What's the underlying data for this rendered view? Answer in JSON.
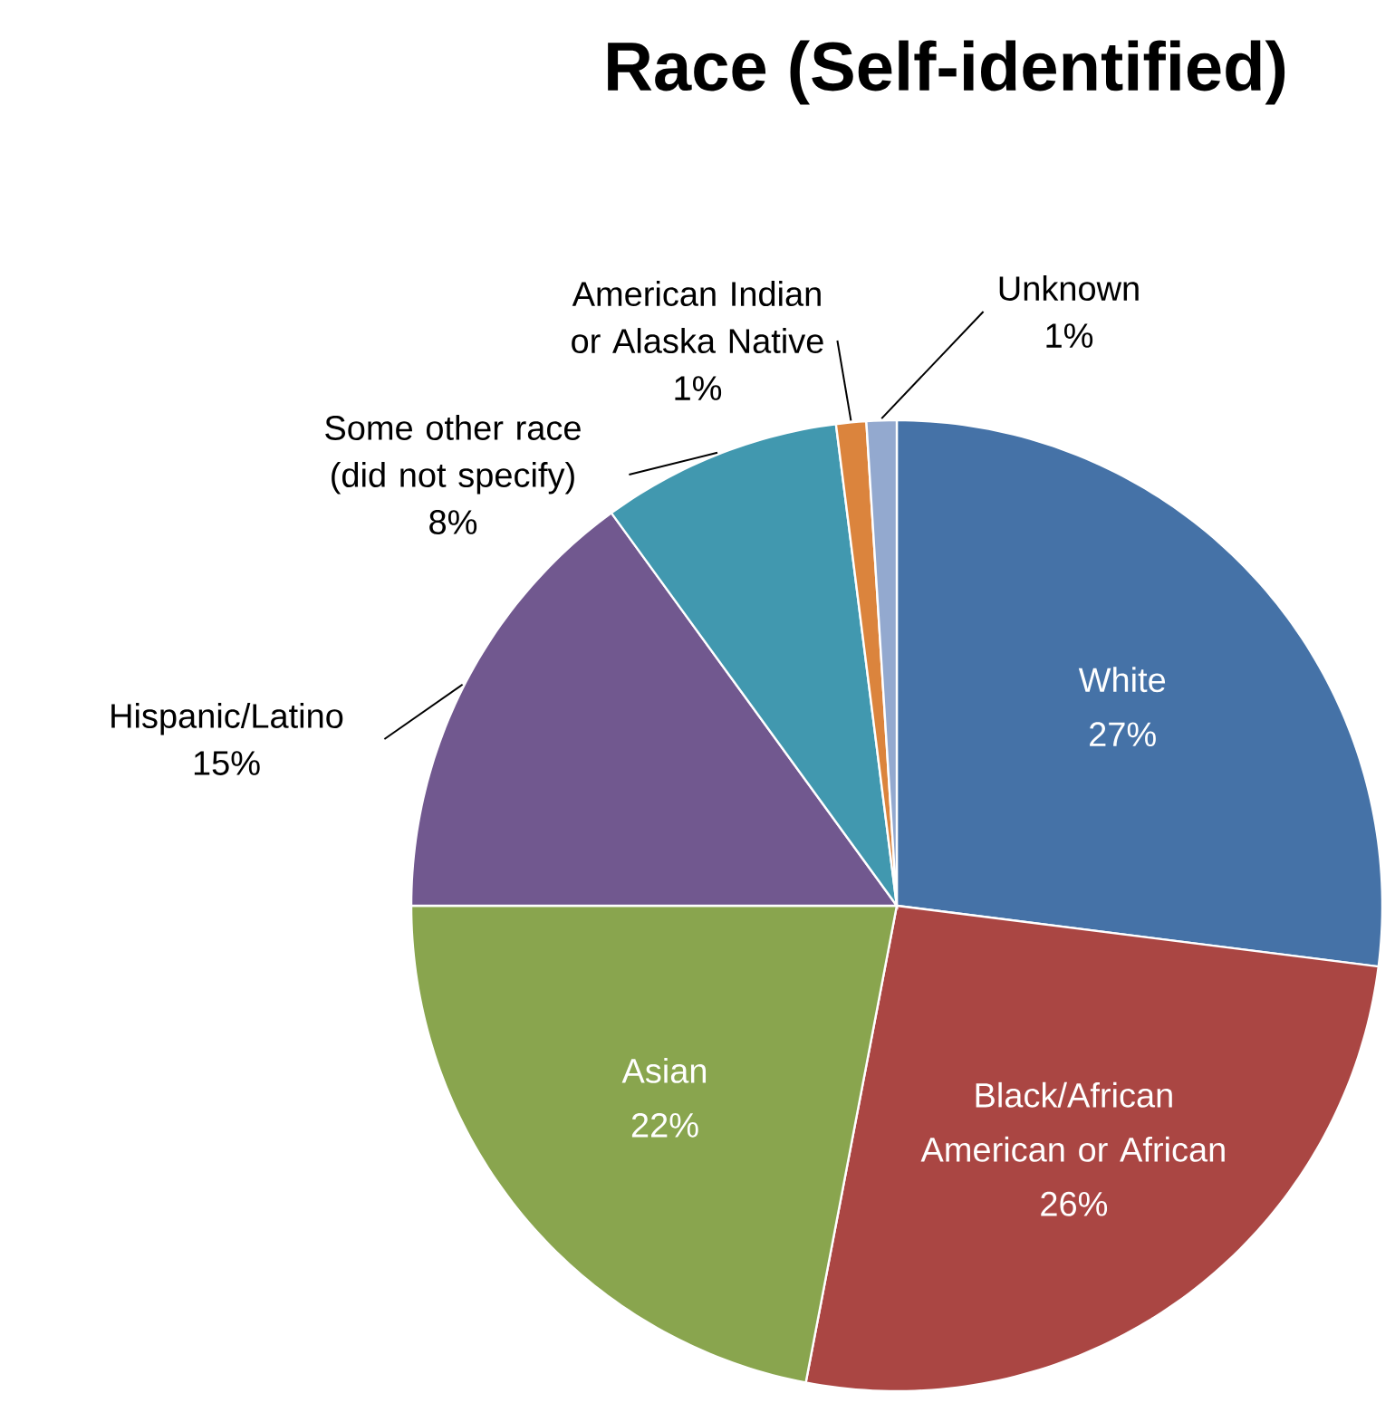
{
  "chart_data": {
    "type": "pie",
    "title": "Race (Self-identified)",
    "categories": [
      "White",
      "Black/African American or African",
      "Asian",
      "Hispanic/Latino",
      "Some other race (did not specify)",
      "American Indian or Alaska Native",
      "Unknown"
    ],
    "values": [
      27,
      26,
      22,
      15,
      8,
      1,
      1
    ],
    "value_labels": [
      "27%",
      "26%",
      "22%",
      "15%",
      "8%",
      "1%",
      "1%"
    ],
    "colors": [
      "#4572a7",
      "#aa4643",
      "#89a54e",
      "#71588f",
      "#4198af",
      "#db843d",
      "#93a9cf"
    ]
  }
}
